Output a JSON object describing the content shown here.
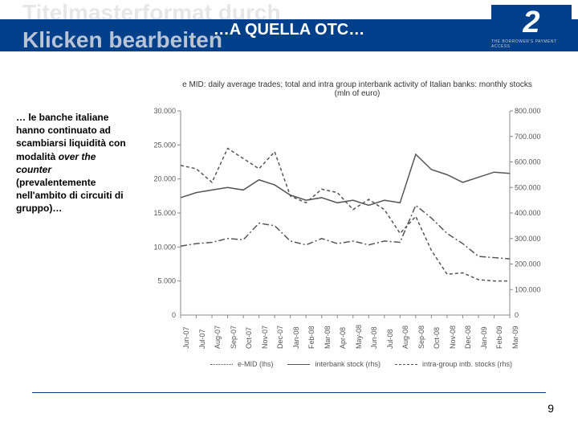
{
  "header": {
    "ghost_line1": "Titelmasterformat durch",
    "ghost_line2": "Klicken bearbeiten",
    "title": "…A QUELLA OTC…",
    "logo_number": "2",
    "logo_sub": "THE BORROWER'S PAYMENT ACCESS"
  },
  "chart": {
    "title_line1": "e MID: daily average trades; total and intra group interbank activity of Italian banks: monthly stocks",
    "title_line2": "(mln of euro)",
    "type": "line",
    "background_color": "#ffffff",
    "axis_color": "#888888",
    "line_color": "#555555",
    "left_axis": {
      "min": 0,
      "max": 30000,
      "tick_step": 5000,
      "fontsize": 9
    },
    "right_axis": {
      "min": 0,
      "max": 800000,
      "tick_step": 100000,
      "fontsize": 9
    },
    "x_labels": [
      "Jun-07",
      "Jul-07",
      "Aug-07",
      "Sep-07",
      "Oct-07",
      "Nov-07",
      "Dec-07",
      "Jan-08",
      "Feb-08",
      "Mar-08",
      "Apr-08",
      "May-08",
      "Jun-08",
      "Jul-08",
      "Aug-08",
      "Sep-08",
      "Oct-08",
      "Nov-08",
      "Dec-08",
      "Jan-09",
      "Feb-09",
      "Mar-09"
    ],
    "series": [
      {
        "name": "e-MID (lhs)",
        "axis": "left",
        "dash": "4 3",
        "values": [
          22000,
          21500,
          19500,
          24500,
          23000,
          21500,
          24000,
          17500,
          16500,
          18500,
          18000,
          15500,
          17000,
          15500,
          12000,
          14500,
          9500,
          6000,
          6200,
          5200,
          5000,
          5000
        ]
      },
      {
        "name": "interbank stock (rhs)",
        "axis": "right",
        "dash": "none",
        "values": [
          460000,
          480000,
          490000,
          500000,
          490000,
          530000,
          510000,
          470000,
          450000,
          460000,
          440000,
          450000,
          430000,
          450000,
          440000,
          630000,
          570000,
          550000,
          520000,
          540000,
          560000,
          555000
        ]
      },
      {
        "name": "intra-group intb. stocks (rhs)",
        "axis": "right",
        "dash": "8 3 2 3",
        "values": [
          270000,
          280000,
          285000,
          300000,
          295000,
          360000,
          350000,
          290000,
          275000,
          300000,
          280000,
          290000,
          275000,
          290000,
          285000,
          430000,
          380000,
          320000,
          280000,
          230000,
          225000,
          220000
        ]
      }
    ],
    "legend_position": "bottom"
  },
  "sidebar": {
    "text_parts": [
      "… le banche italiane hanno continuato ad scambiarsi liquidità con modalità ",
      "over the counter",
      " (prevalentemente nell'ambito di circuiti di gruppo)…"
    ]
  },
  "footer": {
    "page_number": "9"
  },
  "colors": {
    "brand": "#003f8a",
    "ghost": "#e6e6e6"
  }
}
